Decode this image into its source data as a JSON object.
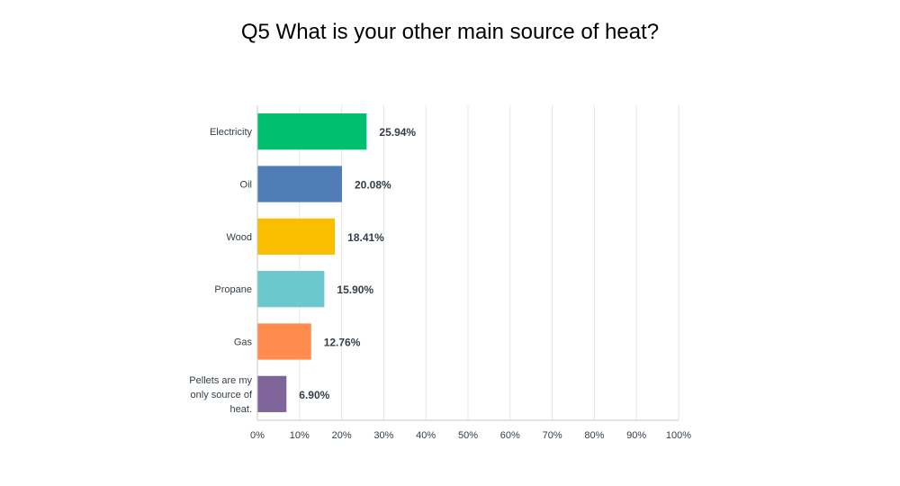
{
  "chart_data": {
    "type": "bar",
    "orientation": "horizontal",
    "title": "Q5 What is your other main source of heat?",
    "categories": [
      "Electricity",
      "Oil",
      "Wood",
      "Propane",
      "Gas",
      "Pellets are my only source of heat."
    ],
    "values": [
      25.94,
      20.08,
      18.41,
      15.9,
      12.76,
      6.9
    ],
    "value_labels": [
      "25.94%",
      "20.08%",
      "18.41%",
      "15.90%",
      "12.76%",
      "6.90%"
    ],
    "colors": [
      "#00bf6f",
      "#507cb6",
      "#f9be00",
      "#6bc8cd",
      "#ff8b4f",
      "#7f6499"
    ],
    "xlim": [
      0,
      100
    ],
    "x_ticks": [
      "0%",
      "10%",
      "20%",
      "30%",
      "40%",
      "50%",
      "60%",
      "70%",
      "80%",
      "90%",
      "100%"
    ],
    "grid": true,
    "legend": "none"
  }
}
